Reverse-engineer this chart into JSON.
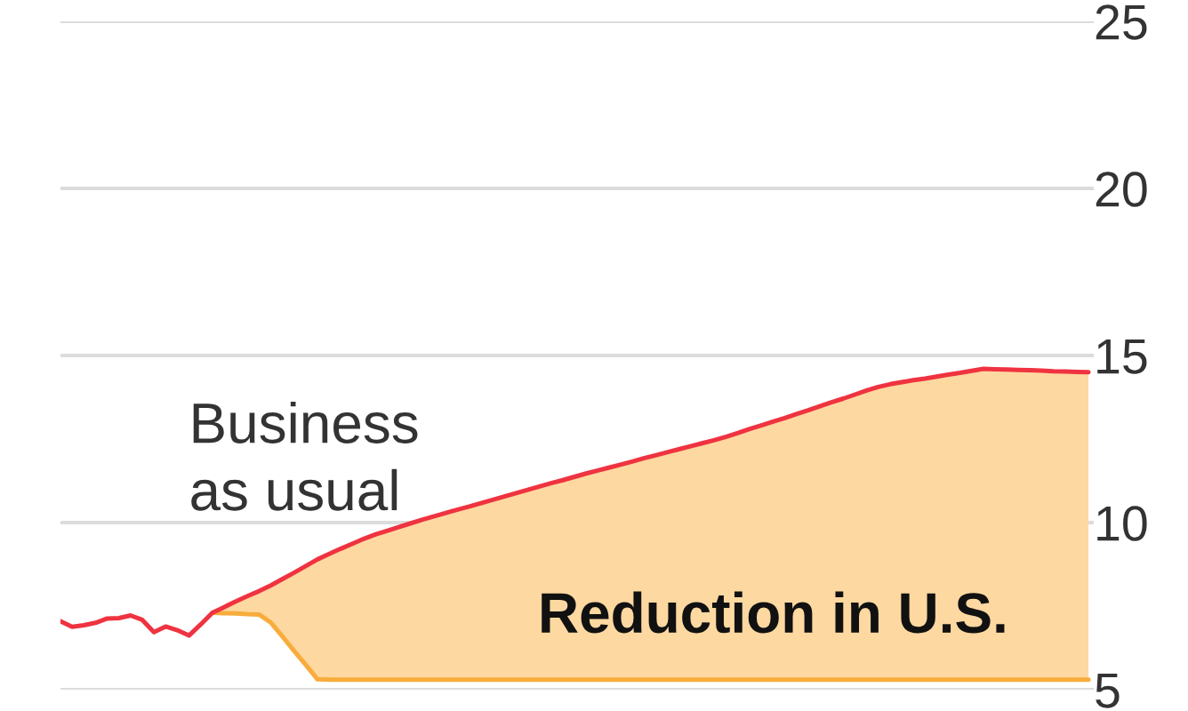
{
  "chart_data": {
    "type": "line",
    "categories": [
      null,
      null,
      null,
      null,
      null,
      null,
      null,
      null,
      null,
      null,
      null,
      null,
      null,
      null,
      null,
      null,
      null,
      null,
      null,
      null,
      null,
      null,
      null,
      null,
      null,
      null,
      null,
      null,
      null,
      null,
      null,
      null,
      null,
      null,
      null,
      null,
      null,
      null,
      null,
      null,
      null,
      null,
      null,
      null,
      null,
      null,
      null,
      null,
      null,
      null,
      null,
      null,
      null,
      null,
      null,
      null,
      null,
      null,
      null,
      null,
      null,
      null,
      null,
      null,
      null,
      null,
      null,
      null,
      null,
      null,
      null,
      null,
      null,
      null,
      null,
      null,
      null,
      null,
      null,
      null,
      null,
      null,
      null,
      null,
      null,
      null,
      null,
      null,
      null
    ],
    "ylim": [
      5,
      25
    ],
    "yticks": [
      5,
      10,
      15,
      20,
      25
    ],
    "grid": "y",
    "tick_labels": "y",
    "series": [
      {
        "name": "Business\nas usual",
        "color": "#ef3340",
        "values": [
          7.05,
          6.88,
          6.93,
          7.0,
          7.13,
          7.14,
          7.22,
          7.09,
          6.72,
          6.89,
          6.78,
          6.62,
          6.95,
          7.3,
          7.47,
          7.64,
          7.8,
          7.95,
          8.12,
          8.31,
          8.5,
          8.7,
          8.9,
          9.06,
          9.22,
          9.37,
          9.52,
          9.65,
          9.76,
          9.87,
          9.98,
          10.09,
          10.19,
          10.29,
          10.39,
          10.48,
          10.58,
          10.68,
          10.78,
          10.88,
          10.98,
          11.08,
          11.18,
          11.27,
          11.37,
          11.47,
          11.56,
          11.65,
          11.74,
          11.83,
          11.93,
          12.02,
          12.11,
          12.2,
          12.29,
          12.38,
          12.47,
          12.57,
          12.68,
          12.8,
          12.91,
          13.02,
          13.13,
          13.25,
          13.36,
          13.48,
          13.6,
          13.71,
          13.83,
          13.95,
          14.06,
          14.14,
          14.2,
          14.26,
          14.31,
          14.37,
          14.43,
          14.48,
          14.54,
          14.6,
          14.59,
          14.58,
          14.57,
          14.56,
          14.55,
          14.53,
          14.52,
          14.51,
          14.5
        ]
      },
      {
        "name": "Reduction in U.S.",
        "type": "area",
        "color": "#fdd8a0",
        "values": [
          null,
          null,
          null,
          null,
          null,
          null,
          null,
          null,
          null,
          null,
          null,
          null,
          null,
          7.3,
          7.47,
          7.64,
          7.8,
          7.95,
          8.12,
          8.31,
          8.5,
          8.7,
          8.9,
          9.06,
          9.22,
          9.37,
          9.52,
          9.65,
          9.76,
          9.87,
          9.98,
          10.09,
          10.19,
          10.29,
          10.39,
          10.48,
          10.58,
          10.68,
          10.78,
          10.88,
          10.98,
          11.08,
          11.18,
          11.27,
          11.37,
          11.47,
          11.56,
          11.65,
          11.74,
          11.83,
          11.93,
          12.02,
          12.11,
          12.2,
          12.29,
          12.38,
          12.47,
          12.57,
          12.68,
          12.8,
          12.91,
          13.02,
          13.13,
          13.25,
          13.36,
          13.48,
          13.6,
          13.71,
          13.83,
          13.95,
          14.06,
          14.14,
          14.2,
          14.26,
          14.31,
          14.37,
          14.43,
          14.48,
          14.54,
          14.6,
          14.59,
          14.58,
          14.57,
          14.56,
          14.55,
          14.53,
          14.52,
          14.51,
          14.5
        ]
      },
      {
        "color": "#f8ac3c",
        "values": [
          null,
          null,
          null,
          null,
          null,
          null,
          null,
          null,
          null,
          null,
          null,
          null,
          null,
          7.3,
          7.29,
          7.28,
          7.26,
          7.25,
          7.01,
          6.59,
          6.16,
          5.74,
          5.31,
          5.3,
          5.3,
          5.3,
          5.3,
          5.3,
          5.3,
          5.3,
          5.3,
          5.3,
          5.3,
          5.3,
          5.3,
          5.3,
          5.3,
          5.3,
          5.3,
          5.3,
          5.3,
          5.3,
          5.3,
          5.3,
          5.3,
          5.3,
          5.3,
          5.3,
          5.3,
          5.3,
          5.3,
          5.3,
          5.3,
          5.3,
          5.3,
          5.3,
          5.3,
          5.3,
          5.3,
          5.3,
          5.3,
          5.3,
          5.3,
          5.3,
          5.3,
          5.3,
          5.3,
          5.3,
          5.3,
          5.3,
          5.3,
          5.3,
          5.3,
          5.3,
          5.3,
          5.3,
          5.3,
          5.3,
          5.3,
          5.3,
          5.3,
          5.3,
          5.3,
          5.3,
          5.3,
          5.3,
          5.3,
          5.3,
          5.3
        ]
      }
    ]
  }
}
